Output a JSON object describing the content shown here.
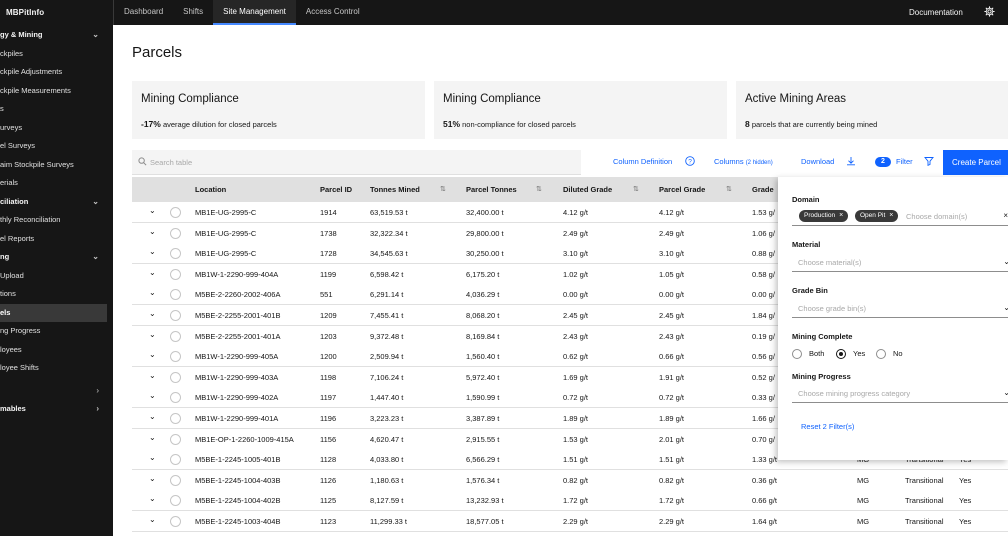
{
  "topbar": {
    "brand": "MBPitInfo",
    "nav": [
      "Dashboard",
      "Shifts",
      "Site Management",
      "Access Control"
    ],
    "active_nav": "Site Management",
    "documentation": "Documentation"
  },
  "sidebar": {
    "items": [
      {
        "label": "gy & Mining",
        "header": true,
        "chevron": "⌄"
      },
      {
        "label": "ckpiles"
      },
      {
        "label": "ckpile Adjustments"
      },
      {
        "label": "ckpile Measurements"
      },
      {
        "label": "s"
      },
      {
        "label": "urveys"
      },
      {
        "label": "el Surveys"
      },
      {
        "label": "aim Stockpile Surveys"
      },
      {
        "label": "erials"
      },
      {
        "label": "ciliation",
        "header": true,
        "chevron": "⌄"
      },
      {
        "label": "thly Reconciliation"
      },
      {
        "label": "el Reports"
      },
      {
        "label": "ng",
        "header": true,
        "chevron": "⌄"
      },
      {
        "label": "Upload"
      },
      {
        "label": "tions"
      },
      {
        "label": "els",
        "selected": true
      },
      {
        "label": "ng Progress"
      },
      {
        "label": "loyees"
      },
      {
        "label": "loyee Shifts"
      },
      {
        "label": "",
        "chevron": "›"
      },
      {
        "label": "mables",
        "header": true,
        "chevron": "›"
      }
    ]
  },
  "page_title": "Parcels",
  "cards": [
    {
      "title": "Mining Compliance",
      "value": "-17%",
      "desc": "average dilution for closed parcels"
    },
    {
      "title": "Mining Compliance",
      "value": "51%",
      "desc": "non-compliance for closed parcels"
    },
    {
      "title": "Active Mining Areas",
      "value": "8",
      "desc": "parcels that are currently being mined"
    }
  ],
  "toolbar": {
    "search_placeholder": "Search table",
    "column_definition": "Column Definition",
    "columns": "Columns",
    "columns_hidden": "(2 hidden)",
    "download": "Download",
    "filter_count": "2",
    "filter": "Filter",
    "create": "Create Parcel"
  },
  "table": {
    "headers": [
      "Location",
      "Parcel ID",
      "Tonnes Mined",
      "Parcel Tonnes",
      "Diluted Grade",
      "Parcel Grade",
      "Grade"
    ],
    "rows": [
      [
        "MB1E-UG-2995-C",
        "1914",
        "63,519.53 t",
        "32,400.00 t",
        "4.12 g/t",
        "4.12 g/t",
        "1.53 g/",
        "",
        "",
        ""
      ],
      [
        "MB1E-UG-2995-C",
        "1738",
        "32,322.34 t",
        "29,800.00 t",
        "2.49 g/t",
        "2.49 g/t",
        "1.06 g/",
        "",
        "",
        ""
      ],
      [
        "MB1E-UG-2995-C",
        "1728",
        "34,545.63 t",
        "30,250.00 t",
        "3.10 g/t",
        "3.10 g/t",
        "0.88 g/",
        "",
        "",
        ""
      ],
      [
        "MB1W-1-2290-999-404A",
        "1199",
        "6,598.42 t",
        "6,175.20 t",
        "1.02 g/t",
        "1.05 g/t",
        "0.58 g/",
        "",
        "",
        ""
      ],
      [
        "M5BE-2-2260-2002-406A",
        "551",
        "6,291.14 t",
        "4,036.29 t",
        "0.00 g/t",
        "0.00 g/t",
        "0.00 g/",
        "",
        "",
        ""
      ],
      [
        "M5BE-2-2255-2001-401B",
        "1209",
        "7,455.41 t",
        "8,068.20 t",
        "2.45 g/t",
        "2.45 g/t",
        "1.84 g/",
        "",
        "",
        ""
      ],
      [
        "M5BE-2-2255-2001-401A",
        "1203",
        "9,372.48 t",
        "8,169.84 t",
        "2.43 g/t",
        "2.43 g/t",
        "0.19 g/",
        "",
        "",
        ""
      ],
      [
        "MB1W-1-2290-999-405A",
        "1200",
        "2,509.94 t",
        "1,560.40 t",
        "0.62 g/t",
        "0.66 g/t",
        "0.56 g/",
        "",
        "",
        ""
      ],
      [
        "MB1W-1-2290-999-403A",
        "1198",
        "7,106.24 t",
        "5,972.40 t",
        "1.69 g/t",
        "1.91 g/t",
        "0.52 g/",
        "",
        "",
        ""
      ],
      [
        "MB1W-1-2290-999-402A",
        "1197",
        "1,447.40 t",
        "1,590.99 t",
        "0.72 g/t",
        "0.72 g/t",
        "0.33 g/",
        "",
        "",
        ""
      ],
      [
        "MB1W-1-2290-999-401A",
        "1196",
        "3,223.23 t",
        "3,387.89 t",
        "1.89 g/t",
        "1.89 g/t",
        "1.66 g/",
        "",
        "",
        ""
      ],
      [
        "MB1E-OP-1-2260-1009-415A",
        "1156",
        "4,620.47 t",
        "2,915.55 t",
        "1.53 g/t",
        "2.01 g/t",
        "0.70 g/",
        "",
        "",
        ""
      ],
      [
        "M5BE-1-2245-1005-401B",
        "1128",
        "4,033.80 t",
        "6,566.29 t",
        "1.51 g/t",
        "1.51 g/t",
        "1.33 g/t",
        "MG",
        "Transitional",
        "Yes"
      ],
      [
        "M5BE-1-2245-1004-403B",
        "1126",
        "1,180.63 t",
        "1,576.34 t",
        "0.82 g/t",
        "0.82 g/t",
        "0.36 g/t",
        "MG",
        "Transitional",
        "Yes"
      ],
      [
        "M5BE-1-2245-1004-402B",
        "1125",
        "8,127.59 t",
        "13,232.93 t",
        "1.72 g/t",
        "1.72 g/t",
        "0.66 g/t",
        "MG",
        "Transitional",
        "Yes"
      ],
      [
        "M5BE-1-2245-1003-404B",
        "1123",
        "11,299.33 t",
        "18,577.05 t",
        "2.29 g/t",
        "2.29 g/t",
        "1.64 g/t",
        "MG",
        "Transitional",
        "Yes"
      ]
    ]
  },
  "filter_panel": {
    "domain_label": "Domain",
    "domain_tags": [
      "Production",
      "Open Pit"
    ],
    "domain_placeholder": "Choose domain(s)",
    "material_label": "Material",
    "material_placeholder": "Choose material(s)",
    "grade_bin_label": "Grade Bin",
    "grade_bin_placeholder": "Choose grade bin(s)",
    "mining_complete_label": "Mining Complete",
    "mining_complete_options": [
      "Both",
      "Yes",
      "No"
    ],
    "mining_complete_selected": "Yes",
    "mining_progress_label": "Mining Progress",
    "mining_progress_placeholder": "Choose mining progress category",
    "reset": "Reset 2 Filter(s)"
  }
}
